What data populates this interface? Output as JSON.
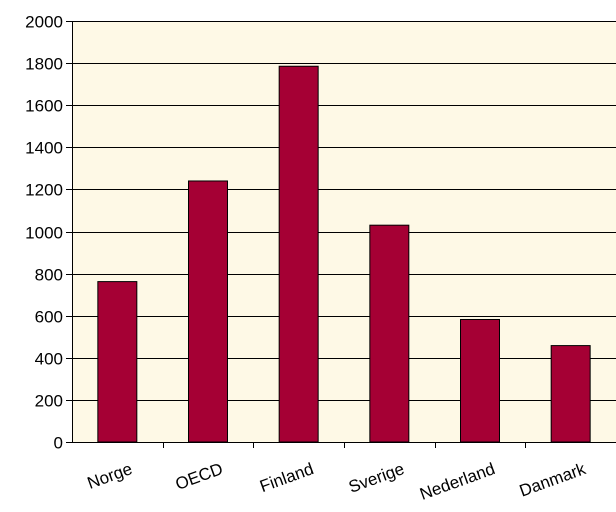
{
  "chart_data": {
    "type": "bar",
    "title": "",
    "xlabel": "",
    "ylabel": "",
    "categories": [
      "Norge",
      "OECD",
      "Finland",
      "Sverige",
      "Nederland",
      "Danmark"
    ],
    "values": [
      762,
      1240,
      1785,
      1030,
      582,
      458
    ],
    "ylim": [
      0,
      2000
    ],
    "yticks": [
      0,
      200,
      400,
      600,
      800,
      1000,
      1200,
      1400,
      1600,
      1800,
      2000
    ],
    "ytick_labels": [
      "0",
      "200",
      "400",
      "600",
      "800",
      "1000",
      "1200",
      "1400",
      "1600",
      "1800",
      "2000"
    ],
    "grid": true,
    "colors": {
      "plot_background": "#FEF9E6",
      "bar_fill": "#A50034",
      "bar_stroke": "#000000",
      "gridline": "#000000"
    }
  }
}
